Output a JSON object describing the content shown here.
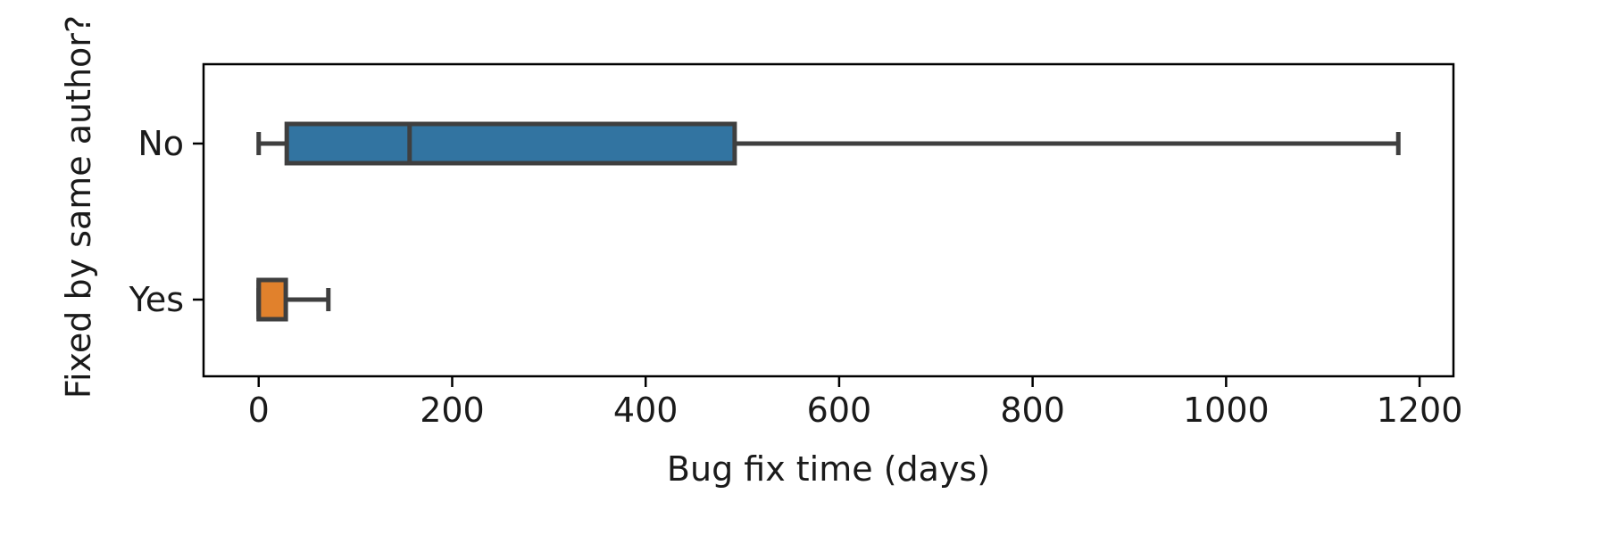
{
  "chart_data": {
    "type": "boxplot",
    "orientation": "horizontal",
    "xlabel": "Bug fix time (days)",
    "ylabel": "Fixed by same author?",
    "xlim": [
      -57,
      1235
    ],
    "xticks": [
      0,
      200,
      400,
      600,
      800,
      1000,
      1200
    ],
    "grid": false,
    "categories": [
      "No",
      "Yes"
    ],
    "boxes": [
      {
        "category": "No",
        "whisker_low": 0,
        "q1": 29,
        "median": 156,
        "q3": 492,
        "whisker_high": 1178,
        "color": "#3274a1"
      },
      {
        "category": "Yes",
        "whisker_low": 0,
        "q1": 0,
        "median": 0,
        "q3": 28,
        "whisker_high": 72,
        "color": "#e1812c"
      }
    ],
    "line_color": "#3f3f3f"
  }
}
